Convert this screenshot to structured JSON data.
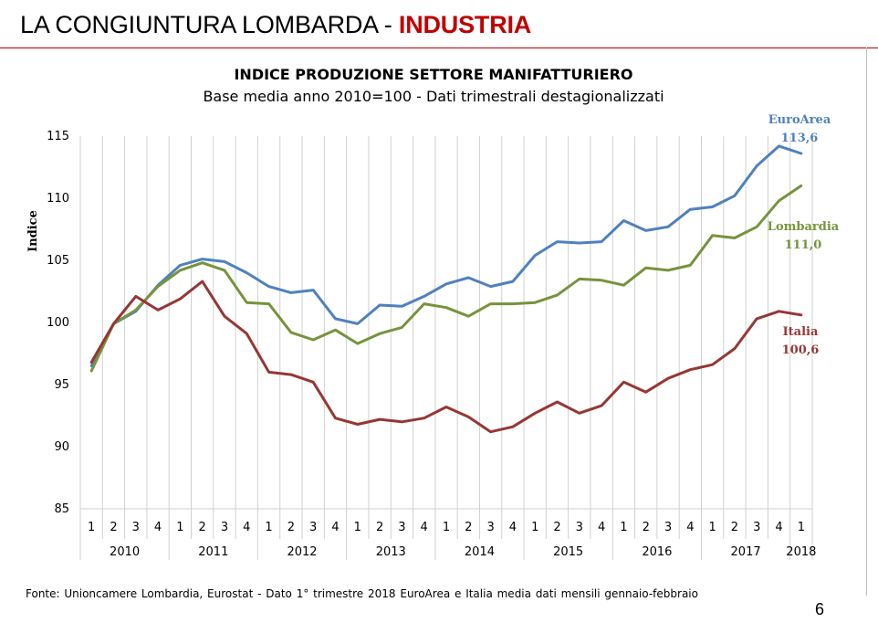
{
  "header": {
    "title_prefix": "LA CONGIUNTURA LOMBARDA - ",
    "title_highlight": "INDUSTRIA"
  },
  "footer": {
    "source": "Fonte: Unioncamere Lombardia, Eurostat - Dato 1° trimestre 2018 EuroArea e Italia media dati mensili gennaio-febbraio",
    "page_number": "6"
  },
  "colors": {
    "accent": "#c00000",
    "euroarea": "#4f81bd",
    "lombardia": "#77933c",
    "italia": "#953735"
  },
  "chart_data": {
    "type": "line",
    "title": "INDICE PRODUZIONE SETTORE MANIFATTURIERO",
    "subtitle": "Base media anno 2010=100 - Dati trimestrali destagionalizzati",
    "ylabel": "Indice",
    "ylim": [
      85,
      115
    ],
    "yticks": [
      85,
      90,
      95,
      100,
      105,
      110,
      115
    ],
    "grid": "vertical",
    "quarters": [
      "1",
      "2",
      "3",
      "4",
      "1",
      "2",
      "3",
      "4",
      "1",
      "2",
      "3",
      "4",
      "1",
      "2",
      "3",
      "4",
      "1",
      "2",
      "3",
      "4",
      "1",
      "2",
      "3",
      "4",
      "1",
      "2",
      "3",
      "4",
      "1",
      "2",
      "3",
      "4",
      "1"
    ],
    "years": [
      {
        "label": "2010",
        "quarters": 4
      },
      {
        "label": "2011",
        "quarters": 4
      },
      {
        "label": "2012",
        "quarters": 4
      },
      {
        "label": "2013",
        "quarters": 4
      },
      {
        "label": "2014",
        "quarters": 4
      },
      {
        "label": "2015",
        "quarters": 4
      },
      {
        "label": "2016",
        "quarters": 4
      },
      {
        "label": "2017",
        "quarters": 4
      },
      {
        "label": "2018",
        "quarters": 1
      }
    ],
    "series": [
      {
        "name": "EuroArea",
        "end_label": "113,6",
        "color": "#4f81bd",
        "values": [
          96.5,
          99.9,
          100.9,
          103.0,
          104.6,
          105.1,
          104.9,
          104.0,
          102.9,
          102.4,
          102.6,
          100.3,
          99.9,
          101.4,
          101.3,
          102.1,
          103.1,
          103.6,
          102.9,
          103.3,
          105.4,
          106.5,
          106.4,
          106.5,
          108.2,
          107.4,
          107.7,
          109.1,
          109.3,
          110.2,
          112.6,
          114.2,
          113.6
        ]
      },
      {
        "name": "Lombardia",
        "end_label": "111,0",
        "color": "#77933c",
        "values": [
          96.1,
          99.9,
          101.0,
          102.9,
          104.2,
          104.8,
          104.2,
          101.6,
          101.5,
          99.2,
          98.6,
          99.4,
          98.3,
          99.1,
          99.6,
          101.5,
          101.2,
          100.5,
          101.5,
          101.5,
          101.6,
          102.2,
          103.5,
          103.4,
          103.0,
          104.4,
          104.2,
          104.6,
          107.0,
          106.8,
          107.7,
          109.8,
          111.0
        ]
      },
      {
        "name": "Italia",
        "end_label": "100,6",
        "color": "#953735",
        "values": [
          96.8,
          99.9,
          102.1,
          101.0,
          101.9,
          103.3,
          100.5,
          99.1,
          96.0,
          95.8,
          95.2,
          92.3,
          91.8,
          92.2,
          92.0,
          92.3,
          93.2,
          92.4,
          91.2,
          91.6,
          92.7,
          93.6,
          92.7,
          93.3,
          95.2,
          94.4,
          95.5,
          96.2,
          96.6,
          97.9,
          100.3,
          100.9,
          100.6
        ]
      }
    ]
  }
}
